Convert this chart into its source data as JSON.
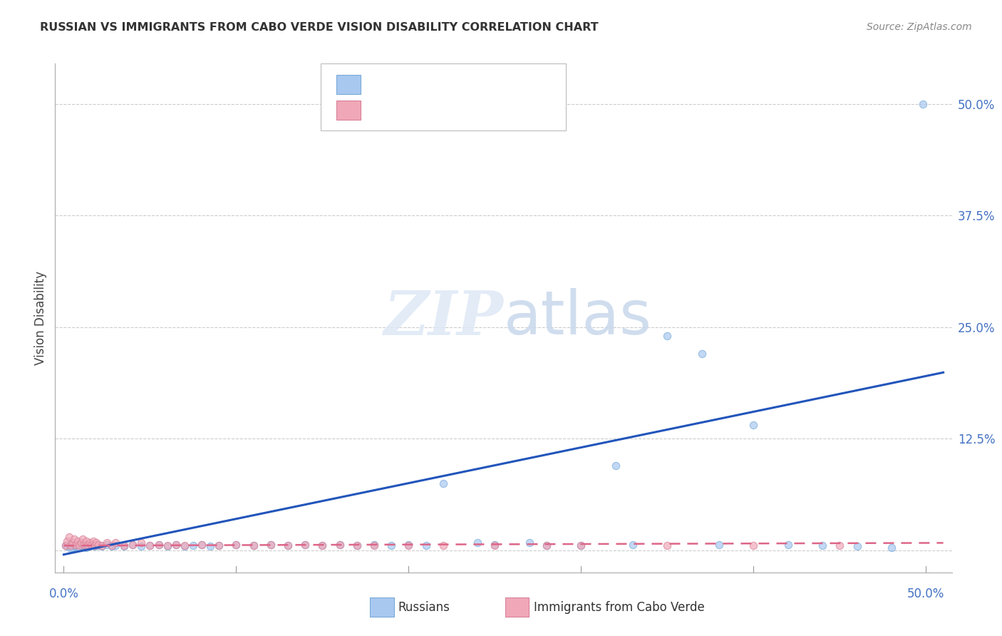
{
  "title": "RUSSIAN VS IMMIGRANTS FROM CABO VERDE VISION DISABILITY CORRELATION CHART",
  "source": "Source: ZipAtlas.com",
  "ylabel": "Vision Disability",
  "yticks": [
    0.0,
    0.125,
    0.25,
    0.375,
    0.5
  ],
  "ytick_labels": [
    "",
    "12.5%",
    "25.0%",
    "37.5%",
    "50.0%"
  ],
  "xlim": [
    -0.005,
    0.515
  ],
  "ylim": [
    -0.025,
    0.545
  ],
  "blue_color": "#a8c8f0",
  "pink_color": "#f0a8b8",
  "blue_edge_color": "#7aaad8",
  "pink_edge_color": "#d88098",
  "blue_line_color": "#2255bb",
  "pink_line_color": "#dd6688",
  "blue_scatter": [
    [
      0.001,
      0.005
    ],
    [
      0.002,
      0.004
    ],
    [
      0.003,
      0.006
    ],
    [
      0.004,
      0.002
    ],
    [
      0.005,
      0.003
    ],
    [
      0.006,
      0.005
    ],
    [
      0.007,
      0.004
    ],
    [
      0.008,
      0.006
    ],
    [
      0.009,
      0.003
    ],
    [
      0.01,
      0.005
    ],
    [
      0.011,
      0.004
    ],
    [
      0.012,
      0.006
    ],
    [
      0.013,
      0.003
    ],
    [
      0.014,
      0.005
    ],
    [
      0.015,
      0.004
    ],
    [
      0.016,
      0.006
    ],
    [
      0.018,
      0.004
    ],
    [
      0.02,
      0.005
    ],
    [
      0.022,
      0.004
    ],
    [
      0.025,
      0.006
    ],
    [
      0.028,
      0.004
    ],
    [
      0.03,
      0.005
    ],
    [
      0.035,
      0.004
    ],
    [
      0.04,
      0.006
    ],
    [
      0.045,
      0.004
    ],
    [
      0.05,
      0.005
    ],
    [
      0.055,
      0.006
    ],
    [
      0.06,
      0.004
    ],
    [
      0.065,
      0.006
    ],
    [
      0.07,
      0.004
    ],
    [
      0.075,
      0.005
    ],
    [
      0.08,
      0.006
    ],
    [
      0.085,
      0.004
    ],
    [
      0.09,
      0.005
    ],
    [
      0.1,
      0.006
    ],
    [
      0.11,
      0.005
    ],
    [
      0.12,
      0.006
    ],
    [
      0.13,
      0.005
    ],
    [
      0.14,
      0.006
    ],
    [
      0.15,
      0.005
    ],
    [
      0.16,
      0.006
    ],
    [
      0.17,
      0.005
    ],
    [
      0.18,
      0.006
    ],
    [
      0.19,
      0.005
    ],
    [
      0.2,
      0.006
    ],
    [
      0.21,
      0.005
    ],
    [
      0.22,
      0.075
    ],
    [
      0.24,
      0.008
    ],
    [
      0.25,
      0.006
    ],
    [
      0.27,
      0.008
    ],
    [
      0.28,
      0.005
    ],
    [
      0.3,
      0.005
    ],
    [
      0.32,
      0.095
    ],
    [
      0.33,
      0.006
    ],
    [
      0.35,
      0.24
    ],
    [
      0.37,
      0.22
    ],
    [
      0.38,
      0.006
    ],
    [
      0.4,
      0.14
    ],
    [
      0.42,
      0.006
    ],
    [
      0.44,
      0.005
    ],
    [
      0.46,
      0.004
    ],
    [
      0.48,
      0.003
    ],
    [
      0.498,
      0.5
    ]
  ],
  "pink_scatter": [
    [
      0.001,
      0.005
    ],
    [
      0.002,
      0.01
    ],
    [
      0.003,
      0.015
    ],
    [
      0.004,
      0.005
    ],
    [
      0.005,
      0.008
    ],
    [
      0.006,
      0.012
    ],
    [
      0.007,
      0.006
    ],
    [
      0.008,
      0.01
    ],
    [
      0.009,
      0.005
    ],
    [
      0.01,
      0.008
    ],
    [
      0.011,
      0.012
    ],
    [
      0.012,
      0.006
    ],
    [
      0.013,
      0.01
    ],
    [
      0.014,
      0.005
    ],
    [
      0.015,
      0.008
    ],
    [
      0.016,
      0.006
    ],
    [
      0.017,
      0.01
    ],
    [
      0.018,
      0.005
    ],
    [
      0.019,
      0.008
    ],
    [
      0.02,
      0.006
    ],
    [
      0.022,
      0.005
    ],
    [
      0.025,
      0.008
    ],
    [
      0.028,
      0.005
    ],
    [
      0.03,
      0.008
    ],
    [
      0.035,
      0.005
    ],
    [
      0.04,
      0.006
    ],
    [
      0.045,
      0.008
    ],
    [
      0.05,
      0.005
    ],
    [
      0.055,
      0.006
    ],
    [
      0.06,
      0.005
    ],
    [
      0.065,
      0.006
    ],
    [
      0.07,
      0.005
    ],
    [
      0.08,
      0.006
    ],
    [
      0.09,
      0.005
    ],
    [
      0.1,
      0.006
    ],
    [
      0.11,
      0.005
    ],
    [
      0.12,
      0.006
    ],
    [
      0.13,
      0.005
    ],
    [
      0.14,
      0.006
    ],
    [
      0.15,
      0.005
    ],
    [
      0.16,
      0.006
    ],
    [
      0.17,
      0.005
    ],
    [
      0.18,
      0.005
    ],
    [
      0.2,
      0.005
    ],
    [
      0.22,
      0.005
    ],
    [
      0.25,
      0.005
    ],
    [
      0.28,
      0.005
    ],
    [
      0.3,
      0.005
    ],
    [
      0.35,
      0.005
    ],
    [
      0.4,
      0.005
    ],
    [
      0.45,
      0.005
    ]
  ],
  "blue_line_x": [
    0.0,
    0.51
  ],
  "blue_line_y_intercept": -0.005,
  "blue_line_slope": 0.4,
  "pink_line_x": [
    0.0,
    0.51
  ],
  "pink_line_y_intercept": 0.005,
  "pink_line_slope": 0.006,
  "watermark_zip": "ZIP",
  "watermark_atlas": "atlas",
  "background_color": "#ffffff"
}
